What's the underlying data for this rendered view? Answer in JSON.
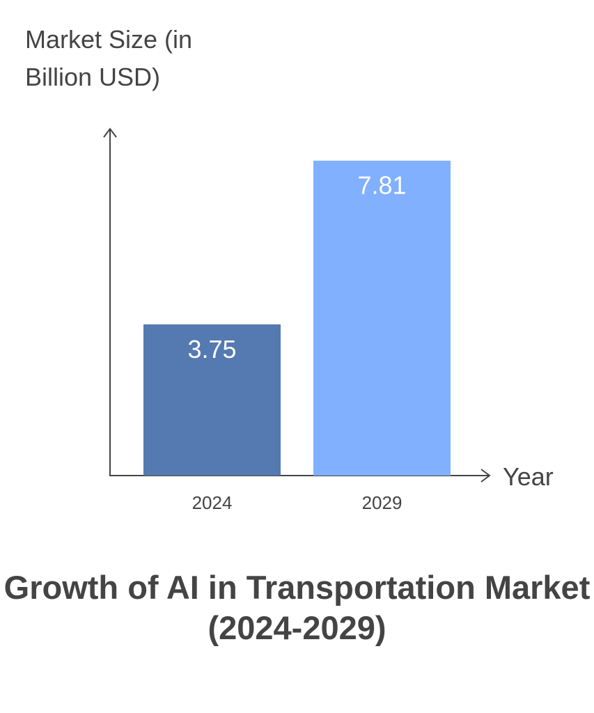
{
  "chart_data": {
    "type": "bar",
    "title": "Growth of AI in Transportation Market (2024-2029)",
    "xlabel": "Year",
    "ylabel": "Market Size (in Billion USD)",
    "categories": [
      "2024",
      "2029"
    ],
    "values": [
      3.75,
      7.81
    ],
    "value_labels": [
      "3.75",
      "7.81"
    ],
    "colors": [
      "#5579B1",
      "#80B0FF"
    ],
    "ylim": [
      0,
      8.6
    ],
    "grid": false,
    "legend": "none"
  }
}
